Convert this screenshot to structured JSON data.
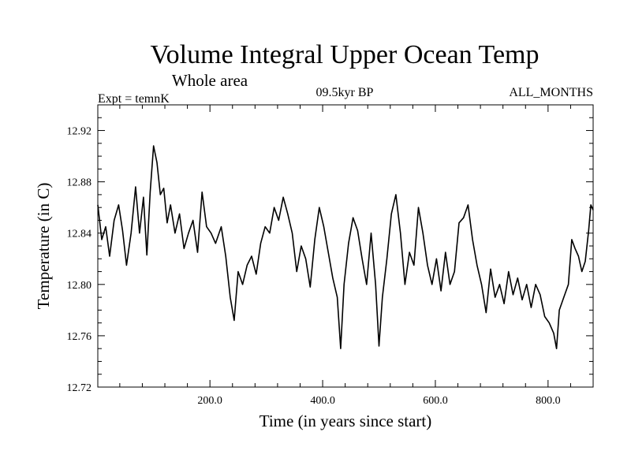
{
  "chart_data": {
    "type": "line",
    "title": "Volume Integral Upper Ocean Temp",
    "subtitle": "Whole area",
    "experiment_label": "Expt = temnK",
    "period_label": "09.5kyr BP",
    "months_label": "ALL_MONTHS",
    "xlabel": "Time (in years since start)",
    "ylabel": "Temperature (in C)",
    "xlim": [
      1,
      880
    ],
    "ylim": [
      12.72,
      12.94
    ],
    "x_ticks": [
      200,
      400,
      600,
      800
    ],
    "x_tick_labels": [
      "200.0",
      "400.0",
      "600.0",
      "800.0"
    ],
    "y_ticks": [
      12.72,
      12.76,
      12.8,
      12.84,
      12.88,
      12.92
    ],
    "y_tick_labels": [
      "12.72",
      "12.76",
      "12.80",
      "12.84",
      "12.88",
      "12.92"
    ],
    "series": [
      {
        "name": "temnK",
        "color": "#000000",
        "points": [
          [
            1,
            12.862
          ],
          [
            8,
            12.835
          ],
          [
            15,
            12.845
          ],
          [
            22,
            12.822
          ],
          [
            30,
            12.85
          ],
          [
            38,
            12.862
          ],
          [
            45,
            12.842
          ],
          [
            52,
            12.815
          ],
          [
            60,
            12.84
          ],
          [
            68,
            12.876
          ],
          [
            75,
            12.84
          ],
          [
            82,
            12.868
          ],
          [
            88,
            12.823
          ],
          [
            94,
            12.872
          ],
          [
            100,
            12.908
          ],
          [
            106,
            12.895
          ],
          [
            112,
            12.87
          ],
          [
            118,
            12.875
          ],
          [
            124,
            12.848
          ],
          [
            130,
            12.862
          ],
          [
            138,
            12.84
          ],
          [
            146,
            12.855
          ],
          [
            154,
            12.828
          ],
          [
            162,
            12.84
          ],
          [
            170,
            12.85
          ],
          [
            178,
            12.825
          ],
          [
            186,
            12.872
          ],
          [
            194,
            12.845
          ],
          [
            202,
            12.84
          ],
          [
            210,
            12.832
          ],
          [
            220,
            12.845
          ],
          [
            228,
            12.822
          ],
          [
            236,
            12.79
          ],
          [
            243,
            12.772
          ],
          [
            250,
            12.81
          ],
          [
            258,
            12.8
          ],
          [
            266,
            12.815
          ],
          [
            274,
            12.822
          ],
          [
            282,
            12.808
          ],
          [
            290,
            12.832
          ],
          [
            298,
            12.845
          ],
          [
            306,
            12.84
          ],
          [
            314,
            12.86
          ],
          [
            322,
            12.85
          ],
          [
            330,
            12.868
          ],
          [
            338,
            12.855
          ],
          [
            346,
            12.84
          ],
          [
            354,
            12.81
          ],
          [
            362,
            12.83
          ],
          [
            370,
            12.82
          ],
          [
            378,
            12.798
          ],
          [
            386,
            12.835
          ],
          [
            394,
            12.86
          ],
          [
            402,
            12.845
          ],
          [
            410,
            12.825
          ],
          [
            418,
            12.805
          ],
          [
            426,
            12.79
          ],
          [
            432,
            12.75
          ],
          [
            438,
            12.8
          ],
          [
            446,
            12.832
          ],
          [
            454,
            12.852
          ],
          [
            462,
            12.842
          ],
          [
            470,
            12.82
          ],
          [
            478,
            12.8
          ],
          [
            486,
            12.84
          ],
          [
            494,
            12.8
          ],
          [
            500,
            12.752
          ],
          [
            506,
            12.79
          ],
          [
            514,
            12.82
          ],
          [
            522,
            12.855
          ],
          [
            530,
            12.87
          ],
          [
            538,
            12.84
          ],
          [
            546,
            12.8
          ],
          [
            554,
            12.825
          ],
          [
            562,
            12.815
          ],
          [
            570,
            12.86
          ],
          [
            578,
            12.84
          ],
          [
            586,
            12.815
          ],
          [
            594,
            12.8
          ],
          [
            602,
            12.82
          ],
          [
            610,
            12.795
          ],
          [
            618,
            12.825
          ],
          [
            626,
            12.8
          ],
          [
            634,
            12.81
          ],
          [
            642,
            12.848
          ],
          [
            650,
            12.852
          ],
          [
            658,
            12.862
          ],
          [
            666,
            12.835
          ],
          [
            674,
            12.815
          ],
          [
            682,
            12.8
          ],
          [
            690,
            12.778
          ],
          [
            698,
            12.812
          ],
          [
            706,
            12.79
          ],
          [
            714,
            12.8
          ],
          [
            722,
            12.785
          ],
          [
            730,
            12.81
          ],
          [
            738,
            12.792
          ],
          [
            746,
            12.805
          ],
          [
            754,
            12.788
          ],
          [
            762,
            12.8
          ],
          [
            770,
            12.782
          ],
          [
            778,
            12.8
          ],
          [
            786,
            12.792
          ],
          [
            794,
            12.775
          ],
          [
            802,
            12.77
          ],
          [
            810,
            12.762
          ],
          [
            815,
            12.75
          ],
          [
            820,
            12.78
          ],
          [
            828,
            12.79
          ],
          [
            836,
            12.8
          ],
          [
            842,
            12.835
          ],
          [
            848,
            12.828
          ],
          [
            854,
            12.822
          ],
          [
            860,
            12.81
          ],
          [
            866,
            12.818
          ],
          [
            872,
            12.842
          ],
          [
            876,
            12.862
          ],
          [
            880,
            12.858
          ]
        ]
      }
    ]
  }
}
